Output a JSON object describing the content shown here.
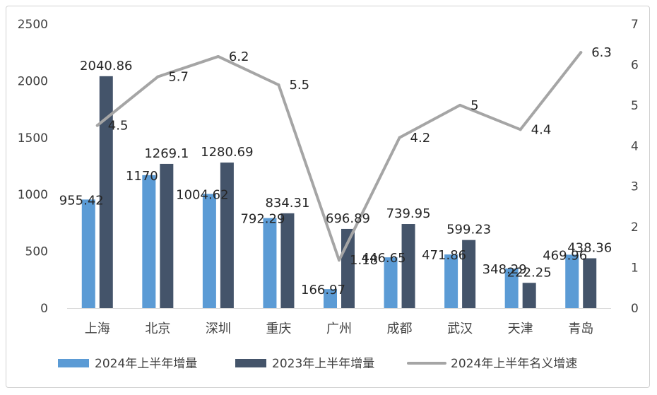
{
  "chart_data": {
    "type": "bar",
    "title": "",
    "categories": [
      "上海",
      "北京",
      "深圳",
      "重庆",
      "广州",
      "成都",
      "武汉",
      "天津",
      "青岛"
    ],
    "series": [
      {
        "name": "2024年上半年增量",
        "kind": "bar",
        "axis": "left",
        "color": "#5b9bd5",
        "values": [
          955.42,
          1170,
          1004.62,
          792.29,
          166.97,
          446.65,
          471.86,
          348.29,
          469.96
        ],
        "labels": [
          "955.42",
          "1170",
          "1004.62",
          "792.29",
          "166.97",
          "446.65",
          "471.86",
          "348.29",
          "469.96"
        ]
      },
      {
        "name": "2023年上半年增量",
        "kind": "bar",
        "axis": "left",
        "color": "#44546a",
        "values": [
          2040.86,
          1269.1,
          1280.69,
          834.31,
          696.89,
          739.95,
          599.23,
          222.25,
          438.36
        ],
        "labels": [
          "2040.86",
          "1269.1",
          "1280.69",
          "834.31",
          "696.89",
          "739.95",
          "599.23",
          "222.25",
          "438.36"
        ]
      },
      {
        "name": "2024年上半年名义增速",
        "kind": "line",
        "axis": "right",
        "color": "#a5a5a5",
        "values": [
          4.5,
          5.7,
          6.2,
          5.5,
          1.18,
          4.2,
          5,
          4.4,
          6.3
        ],
        "labels": [
          "4.5",
          "5.7",
          "6.2",
          "5.5",
          "1.18",
          "4.2",
          "5",
          "4.4",
          "6.3"
        ]
      }
    ],
    "y_left": {
      "min": 0,
      "max": 2500,
      "ticks": [
        "0",
        "500",
        "1000",
        "1500",
        "2000",
        "2500"
      ]
    },
    "y_right": {
      "min": 0,
      "max": 7,
      "ticks": [
        "0",
        "1",
        "2",
        "3",
        "4",
        "5",
        "6",
        "7"
      ]
    },
    "grid": false,
    "legend": "bottom"
  }
}
